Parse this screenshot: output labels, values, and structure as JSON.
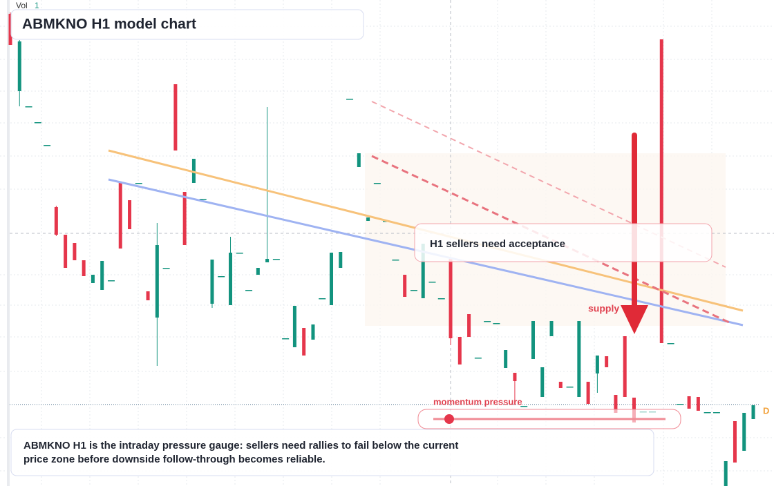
{
  "chart_data": {
    "type": "candlestick",
    "title": "ABMKNO H1 model chart",
    "volume_label": "Vol",
    "volume_value": "1",
    "callout": "H1 sellers need acceptance",
    "zone_label": "supply",
    "gauge_label": "momentum pressure",
    "description": "ABMKNO H1 is the intraday pressure gauge: sellers need rallies to fail below the current price zone before downside follow-through becomes reliable.",
    "badge": "D",
    "up_color": "#12937e",
    "down_color": "#e5364b",
    "ylim": [
      0,
      704
    ],
    "open": [
      684,
      572,
      550,
      527,
      494,
      404,
      364,
      352,
      327,
      294,
      284,
      298,
      439,
      414,
      439,
      282,
      244,
      316,
      582,
      426,
      439,
      416,
      264,
      304,
      262,
      338,
      284,
      306,
      324,
      329,
      214,
      201,
      229,
      212,
      272,
      262,
      316,
      561,
      462,
      384,
      439,
      384,
      328,
      306,
      284,
      272,
      296,
      272,
      329,
      216,
      249,
      186,
      239,
      236,
      171,
      164,
      116,
      184,
      129,
      217,
      151,
      144,
      129,
      151,
      163,
      188,
      132,
      217,
      128,
      108,
      108,
      647,
      207,
      119,
      130,
      129,
      107,
      107,
      0,
      94,
      51,
      97
    ],
    "high": [
      686,
      646,
      550,
      527,
      494,
      406,
      364,
      352,
      327,
      306,
      326,
      298,
      439,
      414,
      439,
      282,
      381,
      316,
      582,
      426,
      474,
      416,
      328,
      304,
      361,
      338,
      284,
      316,
      549,
      334,
      254,
      261,
      229,
      234,
      272,
      338,
      339,
      561,
      482,
      389,
      439,
      384,
      328,
      306,
      284,
      351,
      296,
      272,
      329,
      216,
      249,
      186,
      239,
      236,
      197,
      164,
      116,
      239,
      172,
      239,
      151,
      144,
      239,
      151,
      189,
      188,
      132,
      217,
      128,
      108,
      108,
      647,
      207,
      119,
      130,
      129,
      107,
      107,
      36,
      94,
      106,
      117
    ],
    "low": [
      639,
      550,
      550,
      527,
      494,
      362,
      316,
      327,
      304,
      294,
      284,
      298,
      344,
      372,
      439,
      269,
      174,
      316,
      486,
      349,
      439,
      416,
      258,
      304,
      262,
      338,
      284,
      306,
      324,
      284,
      199,
      201,
      189,
      212,
      272,
      262,
      316,
      561,
      462,
      384,
      439,
      384,
      328,
      274,
      284,
      272,
      296,
      272,
      204,
      176,
      216,
      186,
      239,
      236,
      171,
      124,
      116,
      184,
      129,
      217,
      142,
      144,
      129,
      119,
      135,
      172,
      106,
      129,
      92,
      108,
      108,
      207,
      207,
      119,
      112,
      109,
      107,
      107,
      0,
      34,
      51,
      97
    ],
    "close": [
      639,
      644,
      550,
      527,
      494,
      364,
      316,
      327,
      304,
      306,
      326,
      298,
      344,
      372,
      439,
      269,
      349,
      316,
      486,
      349,
      474,
      416,
      328,
      304,
      338,
      338,
      284,
      316,
      329,
      329,
      214,
      261,
      189,
      234,
      272,
      338,
      339,
      561,
      482,
      389,
      439,
      384,
      328,
      274,
      284,
      351,
      296,
      272,
      214,
      176,
      216,
      186,
      239,
      236,
      197,
      152,
      116,
      239,
      172,
      239,
      142,
      144,
      239,
      119,
      189,
      172,
      106,
      129,
      92,
      108,
      108,
      207,
      207,
      119,
      112,
      109,
      107,
      107,
      36,
      34,
      106,
      117
    ]
  }
}
